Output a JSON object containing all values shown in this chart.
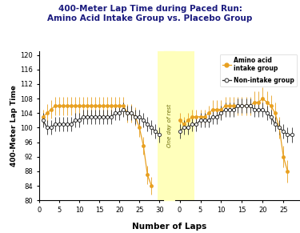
{
  "title": "400-Meter Lap Time during Paced Run:\nAmino Acid Intake Group vs. Placebo Group",
  "ylabel": "400-Meter Lap Time",
  "xlabel": "Number of Laps",
  "title_color": "#1a1a7e",
  "ylim": [
    80,
    121
  ],
  "yticks": [
    80,
    84,
    88,
    92,
    96,
    100,
    104,
    108,
    112,
    116,
    120
  ],
  "rest_band_color": "#ffffbb",
  "rest_label": "One day of rest",
  "amino_color": "#e8a020",
  "placebo_color": "#303030",
  "amino_laps1": [
    1,
    2,
    3,
    4,
    5,
    6,
    7,
    8,
    9,
    10,
    11,
    12,
    13,
    14,
    15,
    16,
    17,
    18,
    19,
    20,
    21,
    22,
    23,
    24,
    25,
    26,
    27,
    28
  ],
  "amino_vals1": [
    103,
    104,
    105,
    106,
    106,
    106,
    106,
    106,
    106,
    106,
    106,
    106,
    106,
    106,
    106,
    106,
    106,
    106,
    106,
    106,
    106,
    104,
    104,
    103,
    100,
    95,
    87,
    84
  ],
  "amino_err1": [
    2,
    2.5,
    2.5,
    2.5,
    2.5,
    2.5,
    2.5,
    2.5,
    2.5,
    2.5,
    2.5,
    2.5,
    2.5,
    2.5,
    2.5,
    2.5,
    2.5,
    2.5,
    2.5,
    2.5,
    2.5,
    2.5,
    2.5,
    2.5,
    2.5,
    2.5,
    2.5,
    2.5
  ],
  "placebo_laps1": [
    1,
    2,
    3,
    4,
    5,
    6,
    7,
    8,
    9,
    10,
    11,
    12,
    13,
    14,
    15,
    16,
    17,
    18,
    19,
    20,
    21,
    22,
    23,
    24,
    25,
    26,
    27,
    28,
    29,
    30
  ],
  "placebo_vals1": [
    102,
    100,
    100,
    101,
    101,
    101,
    101,
    101,
    102,
    102,
    103,
    103,
    103,
    103,
    103,
    103,
    103,
    103,
    104,
    104,
    105,
    104,
    104,
    103,
    103,
    102,
    101,
    100,
    99,
    98
  ],
  "placebo_err1": [
    2,
    2,
    2,
    2,
    2,
    2,
    2,
    2,
    2,
    2,
    2,
    2,
    2,
    2,
    2,
    2,
    2,
    2,
    2,
    2,
    2,
    2,
    2,
    2,
    2,
    2,
    2,
    2,
    2,
    2
  ],
  "amino_laps2": [
    0,
    1,
    2,
    3,
    4,
    5,
    6,
    7,
    8,
    9,
    10,
    11,
    12,
    13,
    14,
    15,
    16,
    17,
    18,
    19,
    20,
    21,
    22,
    23,
    24,
    25,
    26
  ],
  "amino_vals2": [
    102,
    101,
    102,
    103,
    103,
    103,
    103,
    104,
    105,
    105,
    105,
    106,
    106,
    106,
    106,
    106,
    106,
    106,
    107,
    107,
    108,
    107,
    106,
    104,
    100,
    92,
    88
  ],
  "amino_err2": [
    2,
    2,
    2,
    2,
    2,
    2,
    2,
    2,
    2.5,
    2.5,
    2.5,
    2.5,
    2.5,
    2.5,
    2.5,
    2.5,
    2.5,
    2.5,
    3,
    3,
    3,
    3,
    3,
    3,
    3,
    3,
    3
  ],
  "placebo_laps2": [
    0,
    1,
    2,
    3,
    4,
    5,
    6,
    7,
    8,
    9,
    10,
    11,
    12,
    13,
    14,
    15,
    16,
    17,
    18,
    19,
    20,
    21,
    22,
    23,
    24,
    25,
    26,
    27
  ],
  "placebo_vals2": [
    99,
    100,
    100,
    101,
    101,
    102,
    102,
    102,
    103,
    103,
    104,
    105,
    105,
    105,
    106,
    106,
    106,
    106,
    105,
    105,
    105,
    104,
    103,
    101,
    100,
    99,
    98,
    98
  ],
  "placebo_err2": [
    2,
    2,
    2,
    2,
    2,
    2,
    2,
    2,
    2,
    2,
    2,
    2,
    2,
    2,
    2,
    2,
    2,
    2,
    2,
    2,
    2,
    2,
    2,
    2,
    2,
    2,
    2,
    2
  ]
}
